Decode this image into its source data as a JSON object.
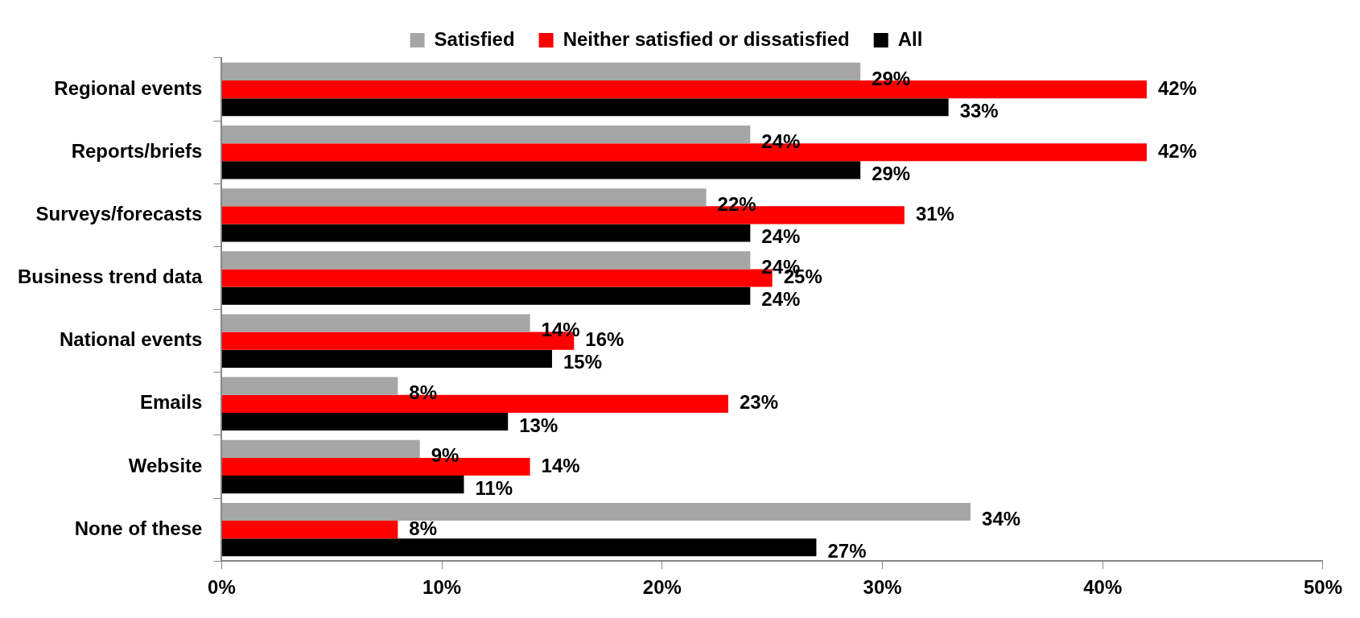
{
  "chart_data": {
    "type": "bar",
    "orientation": "horizontal",
    "categories": [
      "Regional events",
      "Reports/briefs",
      "Surveys/forecasts",
      "Business trend data",
      "National events",
      "Emails",
      "Website",
      "None of these"
    ],
    "series": [
      {
        "name": "Satisfied",
        "color": "#a6a6a6",
        "values": [
          29,
          24,
          22,
          24,
          14,
          8,
          9,
          34
        ],
        "value_labels": [
          "29%",
          "24%",
          "22%",
          "24%",
          "14%",
          "8%",
          "9%",
          "34%"
        ]
      },
      {
        "name": "Neither satisfied or dissatisfied",
        "color": "#ff0000",
        "values": [
          42,
          42,
          31,
          25,
          16,
          23,
          14,
          8
        ],
        "value_labels": [
          "42%",
          "42%",
          "31%",
          "25%",
          "16%",
          "23%",
          "14%",
          "8%"
        ]
      },
      {
        "name": "All",
        "color": "#000000",
        "values": [
          33,
          29,
          24,
          24,
          15,
          13,
          11,
          27
        ],
        "value_labels": [
          "33%",
          "29%",
          "24%",
          "24%",
          "15%",
          "13%",
          "11%",
          "27%"
        ]
      }
    ],
    "xlim": [
      0,
      50
    ],
    "xticks": [
      {
        "value": 0,
        "label": "0%"
      },
      {
        "value": 10,
        "label": "10%"
      },
      {
        "value": 20,
        "label": "20%"
      },
      {
        "value": 30,
        "label": "30%"
      },
      {
        "value": 40,
        "label": "40%"
      },
      {
        "value": 50,
        "label": "50%"
      }
    ],
    "grid": false,
    "legend": "top"
  }
}
